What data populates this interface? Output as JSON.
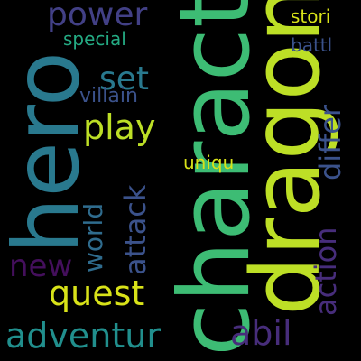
{
  "words": [
    {
      "text": "charact",
      "color": "#3dbc74"
    },
    {
      "text": "dragon",
      "color": "#bddf26"
    },
    {
      "text": "hero",
      "color": "#29798e"
    },
    {
      "text": "power",
      "color": "#424086"
    },
    {
      "text": "special",
      "color": "#24aa83"
    },
    {
      "text": "set",
      "color": "#29798e"
    },
    {
      "text": "play",
      "color": "#bddf26"
    },
    {
      "text": "villain",
      "color": "#3b528b"
    },
    {
      "text": "stori",
      "color": "#d8e219"
    },
    {
      "text": "battl",
      "color": "#3b528b"
    },
    {
      "text": "differ",
      "color": "#3b528b"
    },
    {
      "text": "uniqu",
      "color": "#d8e219"
    },
    {
      "text": "attack",
      "color": "#3b528b"
    },
    {
      "text": "world",
      "color": "#2f6c8e"
    },
    {
      "text": "new",
      "color": "#440f5c"
    },
    {
      "text": "quest",
      "color": "#d8e219"
    },
    {
      "text": "action",
      "color": "#472d7b"
    },
    {
      "text": "abil",
      "color": "#472d7b"
    },
    {
      "text": "adventur",
      "color": "#218f8d"
    }
  ]
}
